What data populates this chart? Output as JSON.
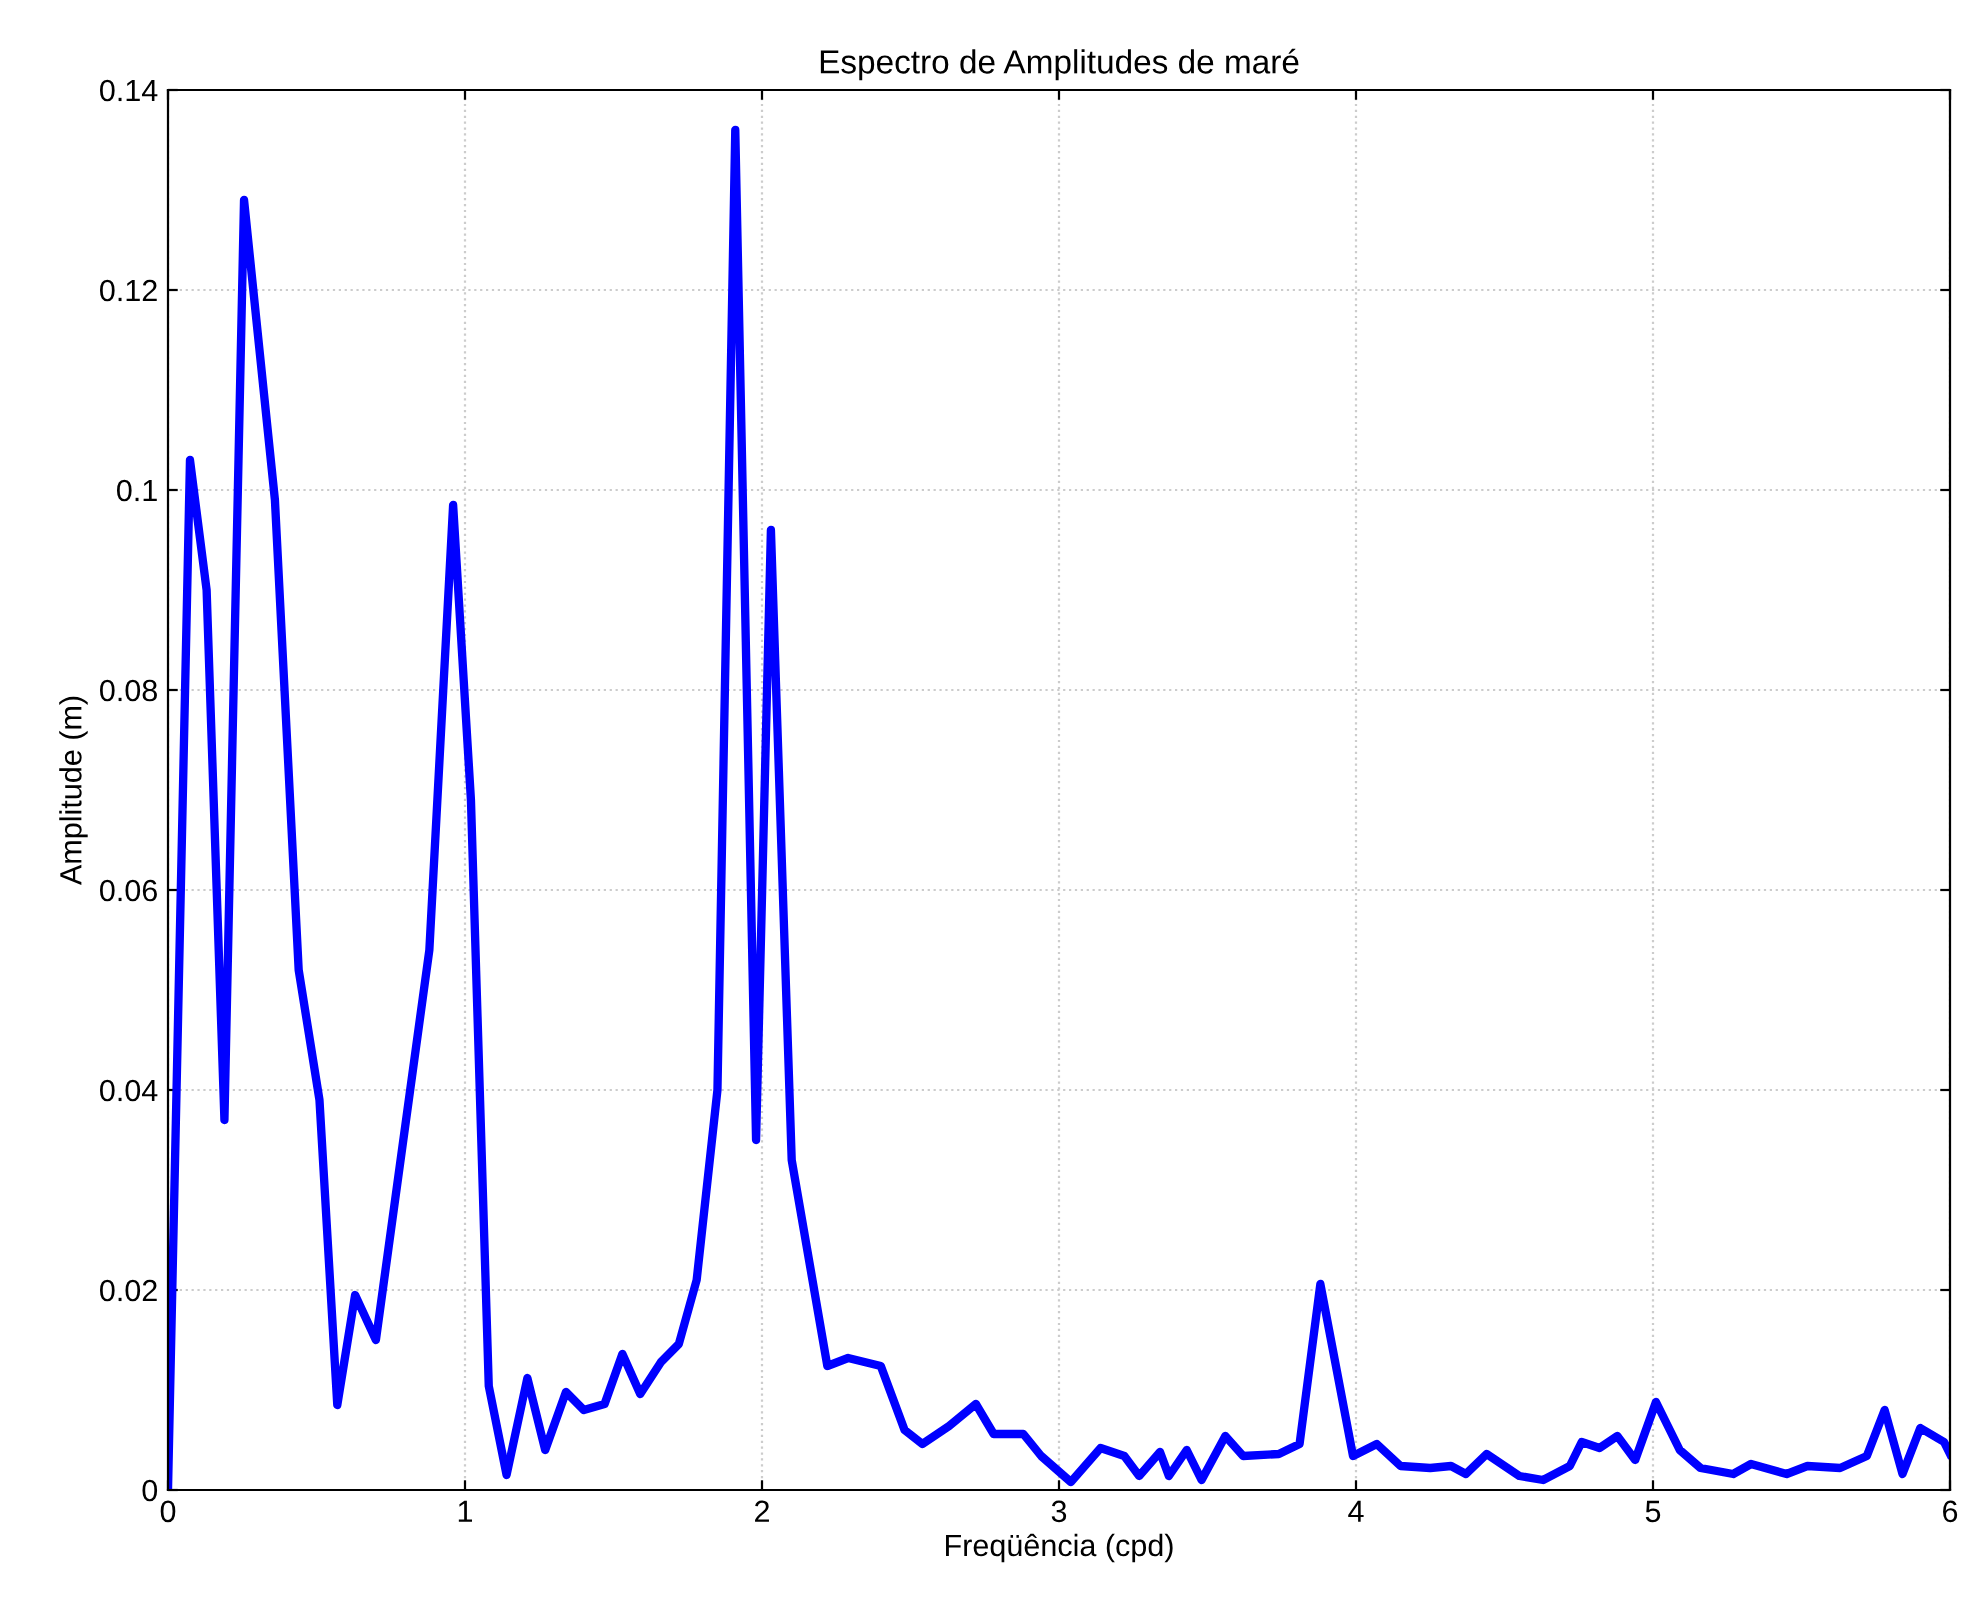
{
  "chart_data": {
    "type": "line",
    "title": "Espectro de Amplitudes de maré",
    "xlabel": "Freqüência (cpd)",
    "ylabel": "Amplitude (m)",
    "xlim": [
      0,
      6
    ],
    "ylim": [
      0,
      0.14
    ],
    "xticks": [
      0,
      1,
      2,
      3,
      4,
      5,
      6
    ],
    "yticks": [
      0,
      0.02,
      0.04,
      0.06,
      0.08,
      0.1,
      0.12,
      0.14
    ],
    "grid": true,
    "line_style": "solid",
    "series": [
      {
        "color": "#0000ff",
        "x": [
          0,
          0.074,
          0.13,
          0.19,
          0.256,
          0.36,
          0.44,
          0.51,
          0.57,
          0.63,
          0.7,
          0.88,
          0.96,
          1.02,
          1.08,
          1.14,
          1.21,
          1.27,
          1.34,
          1.4,
          1.47,
          1.53,
          1.59,
          1.66,
          1.72,
          1.78,
          1.85,
          1.91,
          1.98,
          2.03,
          2.1,
          2.22,
          2.29,
          2.4,
          2.48,
          2.54,
          2.63,
          2.72,
          2.78,
          2.88,
          2.94,
          3.04,
          3.14,
          3.22,
          3.27,
          3.34,
          3.37,
          3.43,
          3.48,
          3.56,
          3.62,
          3.74,
          3.81,
          3.88,
          3.99,
          4.07,
          4.15,
          4.25,
          4.32,
          4.37,
          4.44,
          4.55,
          4.63,
          4.72,
          4.76,
          4.82,
          4.88,
          4.94,
          5.01,
          5.09,
          5.16,
          5.27,
          5.33,
          5.45,
          5.52,
          5.63,
          5.72,
          5.78,
          5.84,
          5.9,
          5.98,
          6.0
        ],
        "values": [
          0,
          0.103,
          0.09,
          0.037,
          0.129,
          0.099,
          0.052,
          0.039,
          0.0085,
          0.0195,
          0.015,
          0.054,
          0.0985,
          0.069,
          0.0104,
          0.0015,
          0.0112,
          0.004,
          0.0098,
          0.008,
          0.0086,
          0.0136,
          0.0096,
          0.0128,
          0.0146,
          0.021,
          0.04,
          0.136,
          0.035,
          0.096,
          0.033,
          0.0124,
          0.0132,
          0.0124,
          0.006,
          0.0046,
          0.0064,
          0.0086,
          0.0056,
          0.0056,
          0.0034,
          0.0008,
          0.0042,
          0.0034,
          0.0014,
          0.0038,
          0.0014,
          0.004,
          0.001,
          0.0054,
          0.0034,
          0.0036,
          0.0046,
          0.0206,
          0.0034,
          0.0046,
          0.0024,
          0.0022,
          0.0024,
          0.0016,
          0.0036,
          0.0014,
          0.001,
          0.0024,
          0.0048,
          0.0042,
          0.0054,
          0.003,
          0.0088,
          0.004,
          0.0022,
          0.0016,
          0.0026,
          0.0016,
          0.0024,
          0.0022,
          0.0034,
          0.008,
          0.0016,
          0.0062,
          0.0048,
          0.0036
        ]
      }
    ]
  }
}
